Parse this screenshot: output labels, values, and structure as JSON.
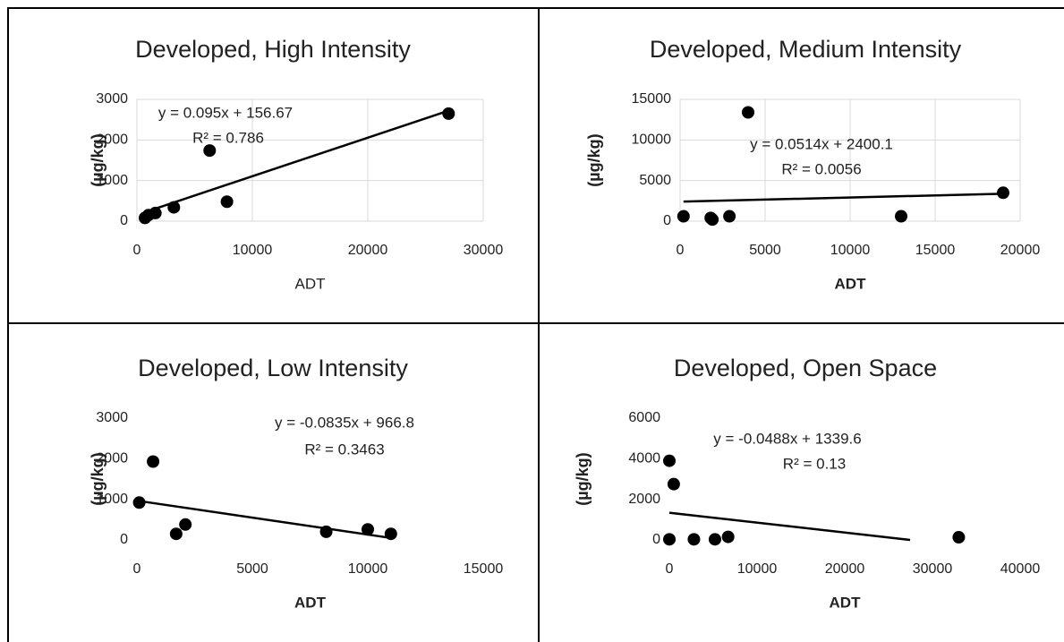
{
  "chart_data": [
    {
      "type": "scatter",
      "title": "Developed, High Intensity",
      "xlabel": "ADT",
      "xlabel_bold": false,
      "ylabel": "(µg/kg)",
      "x": [
        700,
        1000,
        1600,
        3200,
        6300,
        7800,
        27000
      ],
      "values": [
        80,
        150,
        200,
        340,
        1740,
        480,
        2650
      ],
      "xlim": [
        0,
        30000
      ],
      "ylim": [
        0,
        3000
      ],
      "xticks": [
        0,
        10000,
        20000,
        30000
      ],
      "yticks": [
        0,
        1000,
        2000,
        3000
      ],
      "grid": true,
      "color": "#000000",
      "trendline": {
        "slope": 0.095,
        "intercept": 156.67,
        "equation": "y = 0.095x + 156.67",
        "r2": "R² = 0.786"
      }
    },
    {
      "type": "scatter",
      "title": "Developed, Medium Intensity",
      "xlabel": "ADT",
      "xlabel_bold": true,
      "ylabel": "(µg/kg)",
      "x": [
        200,
        1800,
        1900,
        2900,
        4000,
        13000,
        19000
      ],
      "values": [
        600,
        400,
        200,
        600,
        13400,
        600,
        3500
      ],
      "xlim": [
        0,
        20000
      ],
      "ylim": [
        0,
        15000
      ],
      "xticks": [
        0,
        5000,
        10000,
        15000,
        20000
      ],
      "yticks": [
        0,
        5000,
        10000,
        15000
      ],
      "grid": true,
      "color": "#000000",
      "trendline": {
        "slope": 0.0514,
        "intercept": 2400.1,
        "equation": "y = 0.0514x + 2400.1",
        "r2": "R² = 0.0056"
      }
    },
    {
      "type": "scatter",
      "title": "Developed, Low Intensity",
      "xlabel": "ADT",
      "xlabel_bold": true,
      "ylabel": "(µg/kg)",
      "x": [
        100,
        700,
        1700,
        2100,
        8200,
        10000,
        11000
      ],
      "values": [
        920,
        1930,
        150,
        380,
        200,
        260,
        150
      ],
      "xlim": [
        0,
        15000
      ],
      "ylim": [
        0,
        3000
      ],
      "xticks": [
        0,
        5000,
        10000,
        15000
      ],
      "yticks": [
        0,
        1000,
        2000,
        3000
      ],
      "grid": false,
      "color": "#000000",
      "trendline": {
        "slope": -0.0835,
        "intercept": 966.8,
        "equation": "y = -0.0835x + 966.8",
        "r2": "R² = 0.3463"
      }
    },
    {
      "type": "scatter",
      "title": "Developed, Open Space",
      "xlabel": "ADT",
      "xlabel_bold": true,
      "ylabel": "(µg/kg)",
      "x": [
        0,
        0,
        500,
        2800,
        5200,
        6700,
        33000
      ],
      "values": [
        3900,
        30,
        2750,
        30,
        30,
        150,
        130
      ],
      "xlim": [
        0,
        40000
      ],
      "ylim": [
        0,
        6000
      ],
      "xticks": [
        0,
        10000,
        20000,
        30000,
        40000
      ],
      "yticks": [
        0,
        2000,
        4000,
        6000
      ],
      "grid": false,
      "color": "#000000",
      "trendline": {
        "slope": -0.0488,
        "intercept": 1339.6,
        "equation": "y = -0.0488x + 1339.6",
        "r2": "R² = 0.13"
      }
    }
  ]
}
